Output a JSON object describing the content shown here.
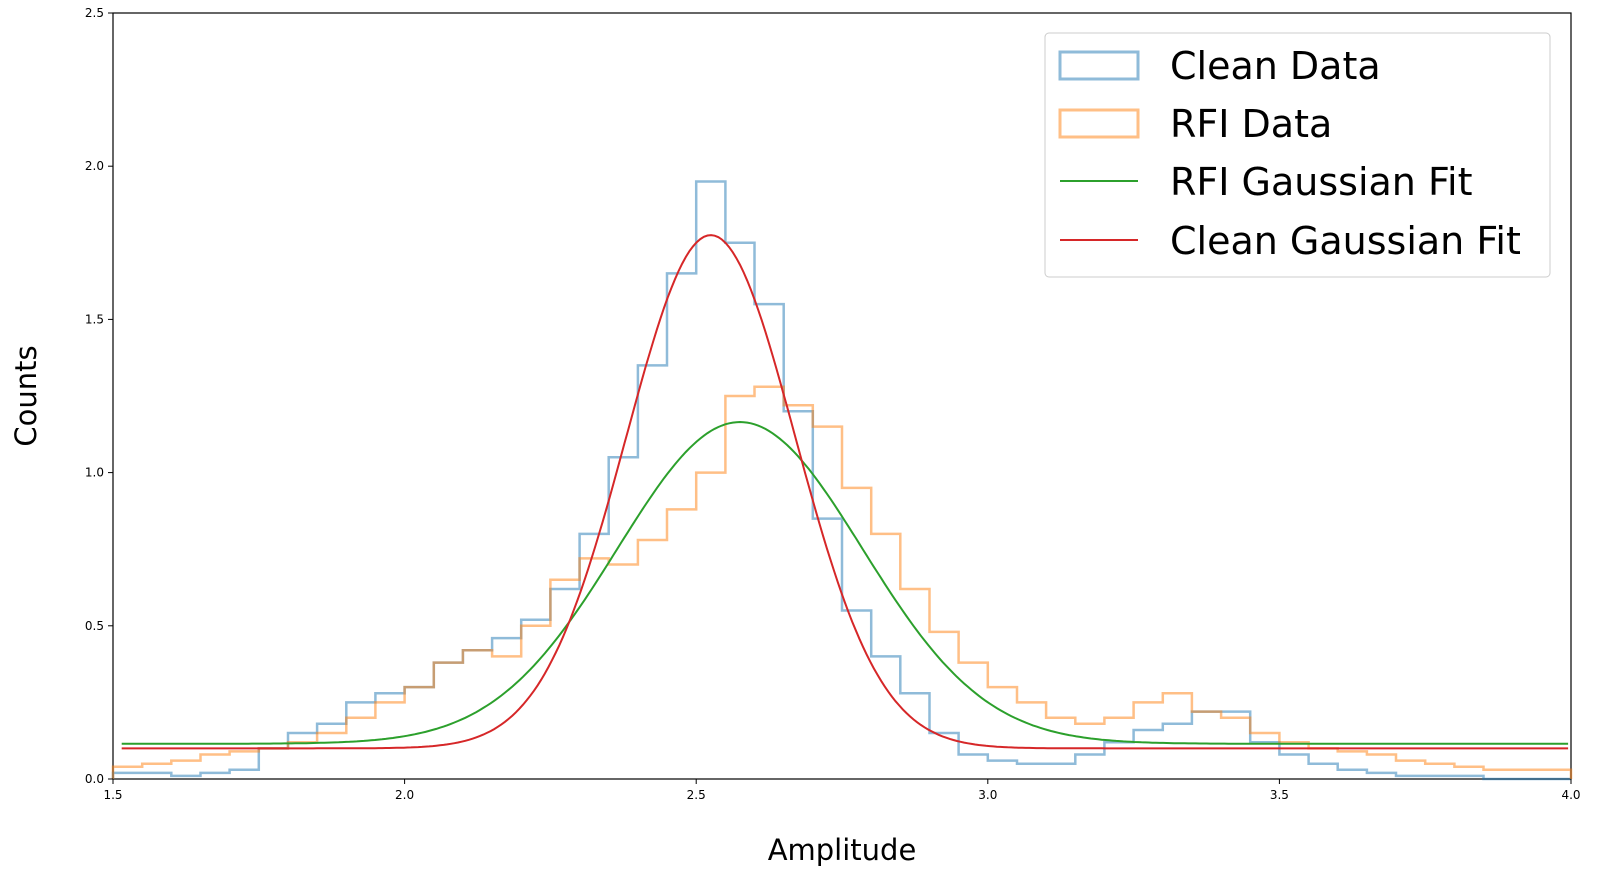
{
  "chart_data": {
    "type": "line",
    "title": "",
    "xlabel": "Amplitude",
    "ylabel": "Counts",
    "xlim": [
      1.5,
      4.0
    ],
    "ylim": [
      0.0,
      2.5
    ],
    "xticks": [
      1.5,
      2.0,
      2.5,
      3.0,
      3.5,
      4.0
    ],
    "xtick_labels": [
      "1.5",
      "2.0",
      "2.5",
      "3.0",
      "3.5",
      "4.0"
    ],
    "yticks": [
      0.0,
      0.5,
      1.0,
      1.5,
      2.0,
      2.5
    ],
    "ytick_labels": [
      "0.0",
      "0.5",
      "1.0",
      "1.5",
      "2.0",
      "2.5"
    ],
    "grid": false,
    "legend_position": "top-right",
    "colors": {
      "clean_data": "#1f77b4",
      "rfi_data": "#ff7f0e",
      "rfi_fit": "#2ca02c",
      "clean_fit": "#d62728"
    },
    "series": [
      {
        "name": "Clean Data",
        "kind": "step-histogram",
        "x": [
          1.5,
          1.55,
          1.6,
          1.65,
          1.7,
          1.75,
          1.8,
          1.85,
          1.9,
          1.95,
          2.0,
          2.05,
          2.1,
          2.15,
          2.2,
          2.25,
          2.3,
          2.35,
          2.4,
          2.45,
          2.5,
          2.55,
          2.6,
          2.65,
          2.7,
          2.75,
          2.8,
          2.85,
          2.9,
          2.95,
          3.0,
          3.05,
          3.1,
          3.15,
          3.2,
          3.25,
          3.3,
          3.35,
          3.4,
          3.45,
          3.5,
          3.55,
          3.6,
          3.65,
          3.7,
          3.75,
          3.8,
          3.85,
          3.9,
          3.95,
          4.0
        ],
        "y": [
          0.02,
          0.02,
          0.01,
          0.02,
          0.03,
          0.1,
          0.15,
          0.18,
          0.25,
          0.28,
          0.3,
          0.38,
          0.42,
          0.46,
          0.52,
          0.62,
          0.8,
          1.05,
          1.35,
          1.65,
          1.95,
          1.75,
          1.55,
          1.2,
          0.85,
          0.55,
          0.4,
          0.28,
          0.15,
          0.08,
          0.06,
          0.05,
          0.05,
          0.08,
          0.12,
          0.16,
          0.18,
          0.22,
          0.22,
          0.12,
          0.08,
          0.05,
          0.03,
          0.02,
          0.01,
          0.01,
          0.01,
          0.0,
          0.0,
          0.0,
          0.0
        ]
      },
      {
        "name": "RFI Data",
        "kind": "step-histogram",
        "x": [
          1.5,
          1.55,
          1.6,
          1.65,
          1.7,
          1.75,
          1.8,
          1.85,
          1.9,
          1.95,
          2.0,
          2.05,
          2.1,
          2.15,
          2.2,
          2.25,
          2.3,
          2.35,
          2.4,
          2.45,
          2.5,
          2.55,
          2.6,
          2.65,
          2.7,
          2.75,
          2.8,
          2.85,
          2.9,
          2.95,
          3.0,
          3.05,
          3.1,
          3.15,
          3.2,
          3.25,
          3.3,
          3.35,
          3.4,
          3.45,
          3.5,
          3.55,
          3.6,
          3.65,
          3.7,
          3.75,
          3.8,
          3.85,
          3.9,
          3.95,
          4.0
        ],
        "y": [
          0.04,
          0.05,
          0.06,
          0.08,
          0.09,
          0.1,
          0.12,
          0.15,
          0.2,
          0.25,
          0.3,
          0.38,
          0.42,
          0.4,
          0.5,
          0.65,
          0.72,
          0.7,
          0.78,
          0.88,
          1.0,
          1.25,
          1.28,
          1.22,
          1.15,
          0.95,
          0.8,
          0.62,
          0.48,
          0.38,
          0.3,
          0.25,
          0.2,
          0.18,
          0.2,
          0.25,
          0.28,
          0.22,
          0.2,
          0.15,
          0.12,
          0.1,
          0.09,
          0.08,
          0.06,
          0.05,
          0.04,
          0.03,
          0.03,
          0.03,
          0.03
        ]
      },
      {
        "name": "RFI Gaussian Fit",
        "kind": "gaussian",
        "offset": 0.115,
        "amplitude": 1.05,
        "mean": 2.575,
        "sigma": 0.21
      },
      {
        "name": "Clean Gaussian Fit",
        "kind": "gaussian",
        "offset": 0.1,
        "amplitude": 1.675,
        "mean": 2.525,
        "sigma": 0.145
      }
    ]
  }
}
